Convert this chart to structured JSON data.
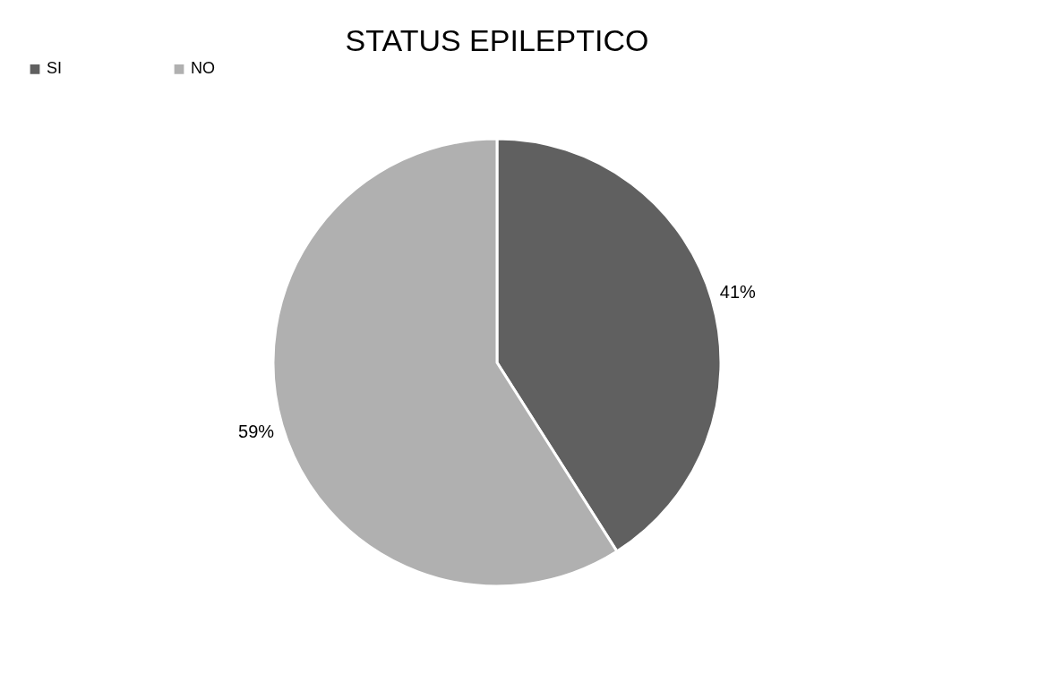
{
  "chart_data": {
    "type": "pie",
    "title": "STATUS EPILEPTICO",
    "categories": [
      "SI",
      "NO"
    ],
    "values": [
      41,
      59
    ],
    "colors": [
      "#606060",
      "#b0b0b0"
    ],
    "value_labels": [
      "41%",
      "59%"
    ],
    "legend": "top"
  }
}
